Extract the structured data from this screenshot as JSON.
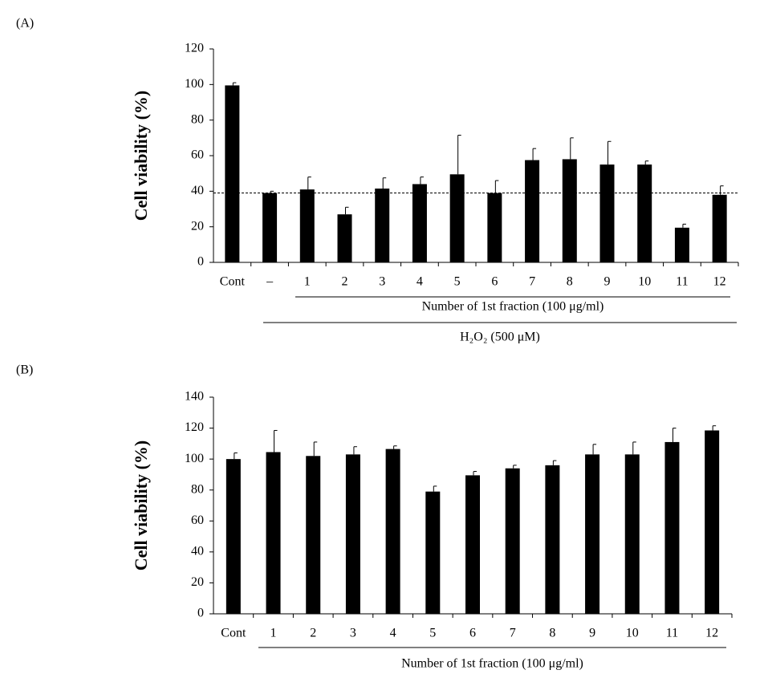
{
  "chart_data": [
    {
      "type": "bar",
      "panel_label": "(A)",
      "ylabel": "Cell viability (%)",
      "categories": [
        "Cont",
        "–",
        "1",
        "2",
        "3",
        "4",
        "5",
        "6",
        "7",
        "8",
        "9",
        "10",
        "11",
        "12"
      ],
      "values": [
        99.5,
        39,
        41,
        27,
        41.5,
        44,
        49.5,
        39,
        57.5,
        58,
        55,
        55,
        19.5,
        38
      ],
      "errors": [
        1.5,
        1,
        7,
        4,
        6,
        4,
        22,
        7,
        6.5,
        12,
        13,
        2,
        2,
        5
      ],
      "hline": 39,
      "group_labels": [
        "Number of 1st fraction (100 μg/ml)",
        "H₂O₂ (500 μM)"
      ],
      "ylim": [
        0,
        120
      ],
      "yticks": [
        0,
        20,
        40,
        60,
        80,
        100,
        120
      ],
      "color": "#000000"
    },
    {
      "type": "bar",
      "panel_label": "(B)",
      "ylabel": "Cell viability (%)",
      "categories": [
        "Cont",
        "1",
        "2",
        "3",
        "4",
        "5",
        "6",
        "7",
        "8",
        "9",
        "10",
        "11",
        "12"
      ],
      "values": [
        100,
        104.5,
        102,
        103,
        106.5,
        79,
        89.5,
        94,
        96,
        103,
        103,
        111,
        118.5
      ],
      "errors": [
        4,
        14,
        9,
        5,
        2,
        3.5,
        2.5,
        2,
        3,
        6.5,
        8,
        9,
        3
      ],
      "group_labels": [
        "Number of 1st fraction (100 μg/ml)"
      ],
      "ylim": [
        0,
        140
      ],
      "yticks": [
        0,
        20,
        40,
        60,
        80,
        100,
        120,
        140
      ],
      "color": "#000000"
    }
  ]
}
